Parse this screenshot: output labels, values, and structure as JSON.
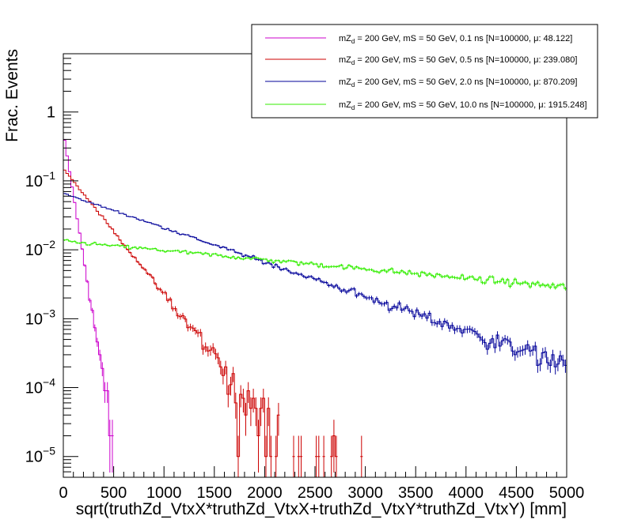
{
  "chart_data": {
    "type": "line",
    "style": "histogram-step-with-error-bars",
    "title": "",
    "xlabel": "sqrt(truthZd_VtxX*truthZd_VtxX+truthZd_VtxY*truthZd_VtxY) [mm]",
    "ylabel": "Frac. Events",
    "xlim": [
      0,
      5000
    ],
    "ylim": [
      5e-06,
      7
    ],
    "yscale": "log",
    "bin_width": 25,
    "x_ticks": [
      "0",
      "500",
      "1000",
      "1500",
      "2000",
      "2500",
      "3000",
      "3500",
      "4000",
      "4500",
      "5000"
    ],
    "y_ticks": [
      {
        "value": 1e-05,
        "mantissa": "10",
        "exp": "−5"
      },
      {
        "value": 0.0001,
        "mantissa": "10",
        "exp": "−4"
      },
      {
        "value": 0.001,
        "mantissa": "10",
        "exp": "−3"
      },
      {
        "value": 0.01,
        "mantissa": "10",
        "exp": "−2"
      },
      {
        "value": 0.1,
        "mantissa": "10",
        "exp": "−1"
      },
      {
        "value": 1,
        "mantissa": "1",
        "exp": ""
      }
    ],
    "legend_position": "top-right",
    "series": [
      {
        "name": "mZd = 200 GeV, mS = 50 GeV, 0.1 ns [N=100000, μ: 48.122]",
        "legend_pre": "mZ",
        "legend_sub": "d",
        "legend_post": " = 200 GeV, mS = 50 GeV, 0.1 ns [N=100000, μ: 48.122]",
        "color": "#cc00cc",
        "model": "exp",
        "y0": 0.5,
        "decay_length": 48.1,
        "xmax": 2150
      },
      {
        "name": "mZd = 200 GeV, mS = 50 GeV, 0.5 ns [N=100000, μ: 239.080]",
        "legend_pre": "mZ",
        "legend_sub": "d",
        "legend_post": " = 200 GeV, mS = 50 GeV, 0.5 ns [N=100000, μ: 239.080]",
        "color": "#cc0000",
        "model": "exp",
        "y0": 0.15,
        "decay_length": 239.1,
        "xmax": 5000
      },
      {
        "name": "mZd = 200 GeV, mS = 50 GeV, 2.0 ns [N=100000, μ: 870.209]",
        "legend_pre": "mZ",
        "legend_sub": "d",
        "legend_post": " = 200 GeV, mS = 50 GeV, 2.0 ns [N=100000, μ: 870.209]",
        "color": "#000099",
        "model": "exp",
        "y0": 0.066,
        "decay_length": 870.2,
        "xmax": 5000
      },
      {
        "name": "mZd = 200 GeV, mS = 50 GeV, 10.0 ns [N=100000, μ: 1915.248]",
        "legend_pre": "mZ",
        "legend_sub": "d",
        "legend_post": " = 200 GeV, mS = 50 GeV, 10.0 ns [N=100000, μ: 1915.248]",
        "color": "#33ee00",
        "model": "exp",
        "y0": 0.0133,
        "decay_length": 3250,
        "xmax": 5000
      }
    ]
  }
}
